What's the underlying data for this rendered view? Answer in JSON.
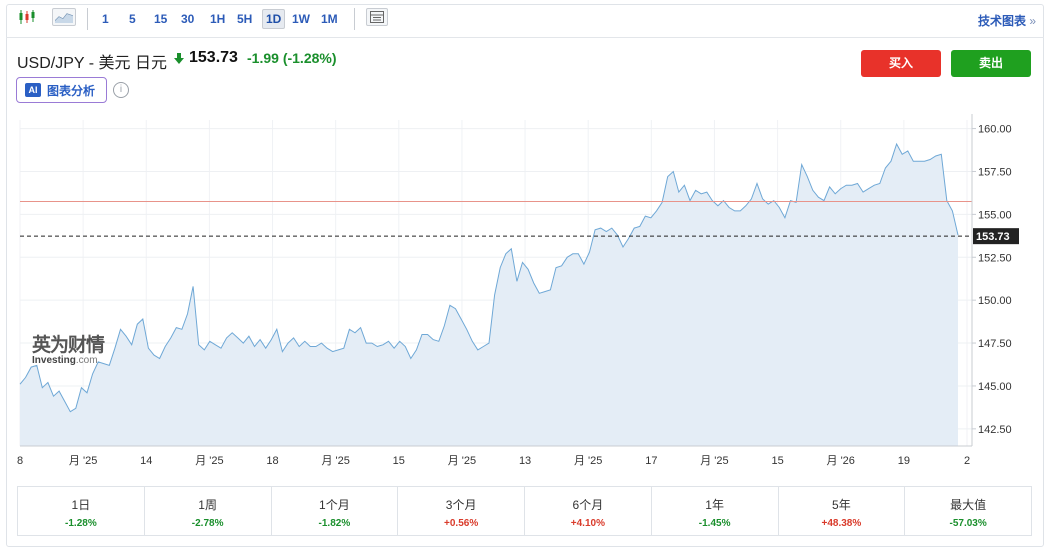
{
  "toolbar": {
    "timeframes": [
      "1",
      "5",
      "15",
      "30",
      "1H",
      "5H",
      "1D",
      "1W",
      "1M"
    ],
    "active": "1D",
    "tech_link": "技术图表"
  },
  "header": {
    "pair": "USD/JPY - 美元 日元",
    "price": "153.73",
    "change": "-1.99",
    "change_pct": "(-1.28%)",
    "ai_label": "图表分析",
    "ai_badge": "AI",
    "info": "i",
    "buy_label": "买入",
    "sell_label": "卖出"
  },
  "watermark": {
    "cn": "英为财情",
    "en": "Investing",
    "suffix": ".com"
  },
  "colors": {
    "line": "#6fa8d6",
    "area": "#e4edf6",
    "ref_line": "#e8938a",
    "up": "#d93a2a",
    "down": "#1a8f2c",
    "buy": "#e8322a",
    "sell": "#1fa01f"
  },
  "chart_data": {
    "type": "area",
    "ylim": [
      141.5,
      160.5
    ],
    "yticks": [
      160.0,
      157.5,
      155.0,
      152.5,
      150.0,
      147.5,
      145.0,
      142.5
    ],
    "ytick_labels": [
      "160.00",
      "157.50",
      "155.00",
      "152.50",
      "150.00",
      "147.50",
      "145.00",
      "142.50"
    ],
    "xtick_labels": [
      "8",
      "月 '25",
      "14",
      "月 '25",
      "18",
      "月 '25",
      "15",
      "月 '25",
      "13",
      "月 '25",
      "17",
      "月 '25",
      "15",
      "月 '26",
      "19",
      "2"
    ],
    "reference_value": 155.75,
    "last_value": 153.73,
    "last_label": "153.73",
    "series": [
      {
        "values": [
          145.1,
          145.5,
          146.1,
          146.2,
          144.9,
          145.2,
          144.4,
          144.7,
          144.1,
          143.5,
          143.7,
          144.9,
          144.6,
          145.7,
          146.4,
          146.3,
          146.2,
          147.2,
          148.3,
          147.9,
          147.4,
          148.6,
          148.9,
          147.2,
          146.8,
          146.6,
          147.3,
          147.8,
          148.4,
          148.3,
          149.2,
          150.8,
          147.4,
          147.1,
          147.6,
          147.4,
          147.2,
          147.8,
          148.1,
          147.8,
          147.5,
          147.9,
          147.3,
          147.7,
          147.2,
          147.7,
          148.3,
          147.0,
          147.5,
          147.8,
          147.3,
          147.6,
          147.3,
          147.3,
          147.5,
          147.2,
          147.0,
          147.1,
          147.2,
          148.3,
          148.1,
          148.4,
          147.5,
          147.5,
          147.3,
          147.4,
          147.6,
          147.2,
          147.6,
          147.3,
          146.6,
          147.1,
          148.0,
          148.0,
          147.7,
          147.6,
          148.5,
          149.7,
          149.5,
          148.9,
          148.3,
          147.6,
          147.1,
          147.3,
          147.5,
          150.3,
          151.9,
          152.7,
          153.0,
          151.1,
          152.2,
          151.8,
          151.0,
          150.4,
          150.5,
          150.6,
          151.9,
          152.0,
          152.5,
          152.7,
          152.7,
          152.1,
          152.8,
          154.1,
          154.2,
          154.0,
          154.2,
          153.8,
          153.1,
          153.6,
          154.2,
          154.3,
          154.9,
          154.8,
          155.2,
          155.7,
          157.2,
          157.5,
          156.3,
          156.7,
          155.8,
          156.4,
          156.2,
          156.3,
          155.8,
          155.5,
          155.8,
          155.4,
          155.2,
          155.2,
          155.5,
          155.9,
          156.8,
          155.9,
          155.6,
          155.8,
          155.4,
          154.8,
          155.8,
          155.7,
          157.9,
          157.2,
          156.4,
          156.0,
          155.8,
          156.6,
          156.2,
          156.5,
          156.7,
          156.7,
          156.8,
          156.3,
          156.5,
          156.7,
          156.8,
          157.7,
          158.1,
          159.1,
          158.5,
          158.7,
          158.1,
          158.1,
          158.1,
          158.2,
          158.4,
          158.5,
          155.8,
          155.2,
          153.8
        ]
      }
    ]
  },
  "performance": [
    {
      "label": "1日",
      "value": "-1.28%",
      "dir": "neg"
    },
    {
      "label": "1周",
      "value": "-2.78%",
      "dir": "neg"
    },
    {
      "label": "1个月",
      "value": "-1.82%",
      "dir": "neg"
    },
    {
      "label": "3个月",
      "value": "+0.56%",
      "dir": "pos"
    },
    {
      "label": "6个月",
      "value": "+4.10%",
      "dir": "pos"
    },
    {
      "label": "1年",
      "value": "-1.45%",
      "dir": "neg"
    },
    {
      "label": "5年",
      "value": "+48.38%",
      "dir": "pos"
    },
    {
      "label": "最大值",
      "value": "-57.03%",
      "dir": "neg"
    }
  ]
}
